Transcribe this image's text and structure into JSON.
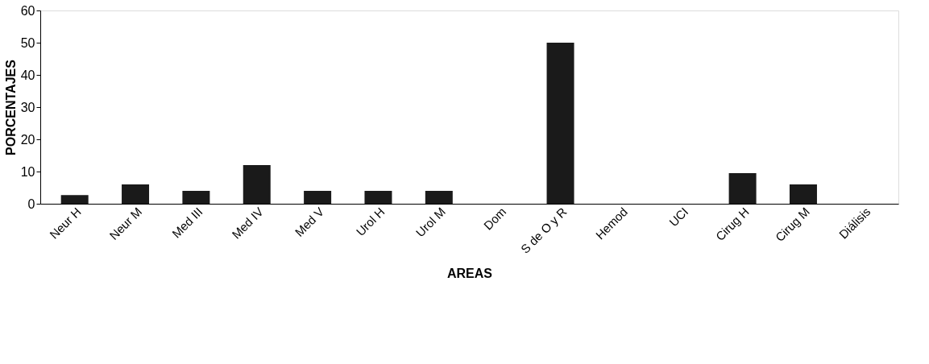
{
  "chart_data": {
    "type": "bar",
    "xlabel": "AREAS",
    "ylabel": "PORCENTAJES",
    "categories": [
      "Neur H",
      "Neur M",
      "Med III",
      "Med IV",
      "Med V",
      "Urol H",
      "Urol M",
      "Dom",
      "S de O y R",
      "Hemod",
      "UCI",
      "Cirug H",
      "Cirug M",
      "Diálisis"
    ],
    "values": [
      2.7,
      6,
      4,
      12,
      4,
      4,
      4,
      0,
      50,
      0,
      0,
      9.5,
      6,
      0
    ],
    "color": "#1a1a1a",
    "ylim": [
      0,
      60
    ],
    "yticks": [
      0,
      10,
      20,
      30,
      40,
      50,
      60
    ],
    "grid": false
  }
}
